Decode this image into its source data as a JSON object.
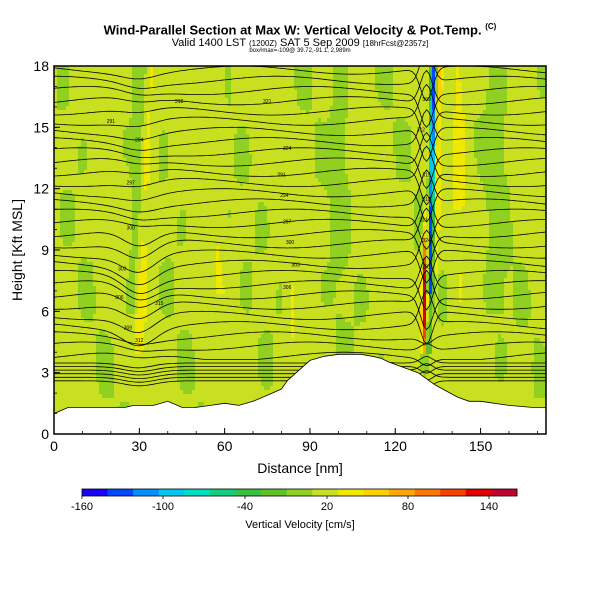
{
  "header": {
    "title": "Wind-Parallel Section at Max W: Vertical Velocity & Pot.Temp.",
    "title_mark": "(C)",
    "subtitle_main": "Valid 1400 LST",
    "subtitle_z": "(1200Z)",
    "subtitle_date": "SAT 5 Sep 2009",
    "subtitle_run": "[18hrFcst@2357z]",
    "tiny_line": "box#max=-109@ 39.72,-91.1, 2,989m"
  },
  "chart_data": {
    "type": "heatmap",
    "xlabel": "Distance [nm]",
    "ylabel": "Height [Kft MSL]",
    "xlim": [
      0,
      173
    ],
    "ylim": [
      0,
      18
    ],
    "xticks": [
      0,
      30,
      60,
      90,
      120,
      150
    ],
    "yticks": [
      0,
      3,
      6,
      9,
      12,
      15,
      18
    ],
    "terrain_kft": [
      [
        0,
        1.0
      ],
      [
        5,
        1.3
      ],
      [
        10,
        1.3
      ],
      [
        20,
        1.3
      ],
      [
        25,
        1.3
      ],
      [
        28,
        1.4
      ],
      [
        30,
        1.4
      ],
      [
        35,
        1.4
      ],
      [
        40,
        1.6
      ],
      [
        45,
        1.3
      ],
      [
        50,
        1.3
      ],
      [
        55,
        1.4
      ],
      [
        60,
        1.5
      ],
      [
        65,
        1.4
      ],
      [
        70,
        1.6
      ],
      [
        75,
        1.9
      ],
      [
        80,
        2.2
      ],
      [
        82,
        2.6
      ],
      [
        86,
        3.1
      ],
      [
        90,
        3.6
      ],
      [
        95,
        3.8
      ],
      [
        100,
        3.9
      ],
      [
        108,
        3.9
      ],
      [
        112,
        3.8
      ],
      [
        115,
        3.7
      ],
      [
        118,
        3.5
      ],
      [
        122,
        3.3
      ],
      [
        126,
        3.1
      ],
      [
        128,
        3.0
      ],
      [
        130,
        2.8
      ],
      [
        134,
        2.4
      ],
      [
        138,
        2.1
      ],
      [
        142,
        1.8
      ],
      [
        146,
        1.6
      ],
      [
        150,
        1.6
      ],
      [
        160,
        1.4
      ],
      [
        168,
        1.3
      ],
      [
        173,
        1.3
      ]
    ],
    "contour_labels": [
      "291",
      "294",
      "297",
      "300",
      "303",
      "306",
      "309",
      "312",
      "315",
      "318",
      "321",
      "324"
    ],
    "colorbar": {
      "label": "Vertical Velocity [cm/s]",
      "ticks": [
        "-160",
        "-100",
        "-40",
        "20",
        "80",
        "140"
      ],
      "colors": [
        "#1a00ff",
        "#0048ff",
        "#0090ff",
        "#00c8f0",
        "#00e0c0",
        "#10d080",
        "#38c040",
        "#60c028",
        "#90d020",
        "#c8e020",
        "#f0e800",
        "#ffd000",
        "#ffa800",
        "#ff7800",
        "#f84000",
        "#e00000",
        "#c00030"
      ]
    }
  }
}
